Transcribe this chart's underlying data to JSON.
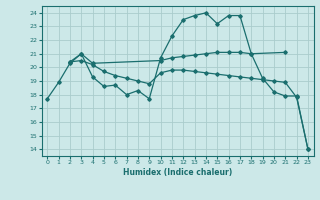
{
  "xlabel": "Humidex (Indice chaleur)",
  "ylabel": "",
  "bg_color": "#cce8e8",
  "grid_color": "#aacccc",
  "line_color": "#1a6e6e",
  "xlim": [
    -0.5,
    23.5
  ],
  "ylim": [
    13.5,
    24.5
  ],
  "yticks": [
    14,
    15,
    16,
    17,
    18,
    19,
    20,
    21,
    22,
    23,
    24
  ],
  "xticks": [
    0,
    1,
    2,
    3,
    4,
    5,
    6,
    7,
    8,
    9,
    10,
    11,
    12,
    13,
    14,
    15,
    16,
    17,
    18,
    19,
    20,
    21,
    22,
    23
  ],
  "line1_x": [
    0,
    1,
    2,
    3,
    4,
    5,
    6,
    7,
    8,
    9,
    10,
    11,
    12,
    13,
    14,
    15,
    16,
    17,
    18,
    19,
    20,
    21,
    22,
    23
  ],
  "line1_y": [
    17.7,
    18.9,
    20.3,
    21.0,
    19.3,
    18.6,
    18.7,
    18.0,
    18.3,
    17.7,
    20.7,
    22.3,
    23.5,
    23.8,
    24.0,
    23.2,
    23.8,
    23.8,
    21.0,
    19.2,
    18.2,
    17.9,
    17.9,
    14.0
  ],
  "line2_x": [
    2,
    3,
    4,
    10,
    11,
    12,
    13,
    14,
    15,
    16,
    17,
    18,
    21
  ],
  "line2_y": [
    20.4,
    21.0,
    20.3,
    20.5,
    20.7,
    20.8,
    20.9,
    21.0,
    21.1,
    21.1,
    21.1,
    21.0,
    21.1
  ],
  "line3_x": [
    2,
    3,
    4,
    5,
    6,
    7,
    8,
    9,
    10,
    11,
    12,
    13,
    14,
    15,
    16,
    17,
    18,
    19,
    20,
    21,
    22,
    23
  ],
  "line3_y": [
    20.4,
    20.5,
    20.2,
    19.7,
    19.4,
    19.2,
    19.0,
    18.8,
    19.6,
    19.8,
    19.8,
    19.7,
    19.6,
    19.5,
    19.4,
    19.3,
    19.2,
    19.1,
    19.0,
    18.9,
    17.8,
    14.0
  ]
}
